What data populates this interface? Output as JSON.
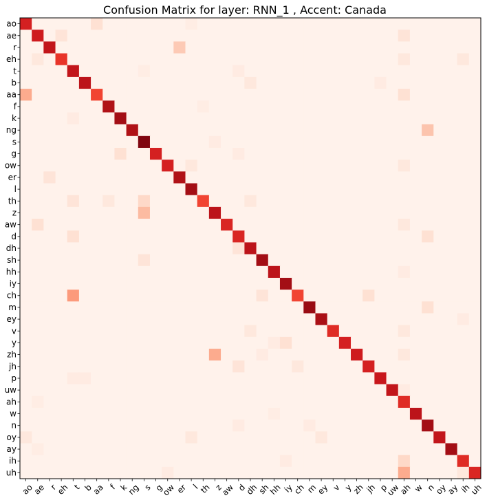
{
  "chart_data": {
    "type": "heatmap",
    "title": "Confusion Matrix for layer: RNN_1 , Accent: Canada",
    "xlabel": "",
    "ylabel": "",
    "colormap": "Reds",
    "vmin": 0,
    "vmax": 1,
    "labels": [
      "ao",
      "ae",
      "r",
      "eh",
      "t",
      "b",
      "aa",
      "f",
      "k",
      "ng",
      "s",
      "g",
      "ow",
      "er",
      "l",
      "th",
      "z",
      "aw",
      "d",
      "dh",
      "sh",
      "hh",
      "iy",
      "ch",
      "m",
      "ey",
      "v",
      "y",
      "zh",
      "jh",
      "p",
      "uw",
      "ah",
      "w",
      "n",
      "oy",
      "ay",
      "ih",
      "uh"
    ],
    "diagonal": [
      0.72,
      0.74,
      0.78,
      0.65,
      0.78,
      0.8,
      0.6,
      0.84,
      0.88,
      0.84,
      0.95,
      0.72,
      0.72,
      0.84,
      0.88,
      0.6,
      0.8,
      0.7,
      0.7,
      0.8,
      0.88,
      0.8,
      0.88,
      0.6,
      0.9,
      0.86,
      0.68,
      0.72,
      0.74,
      0.72,
      0.76,
      0.78,
      0.68,
      0.8,
      0.88,
      0.78,
      0.88,
      0.68,
      0.7
    ],
    "off_diagonal": [
      {
        "row": "ao",
        "col": "aa",
        "value": 0.12
      },
      {
        "row": "ao",
        "col": "l",
        "value": 0.05
      },
      {
        "row": "ae",
        "col": "eh",
        "value": 0.1
      },
      {
        "row": "ae",
        "col": "ah",
        "value": 0.1
      },
      {
        "row": "r",
        "col": "er",
        "value": 0.2
      },
      {
        "row": "eh",
        "col": "ae",
        "value": 0.08
      },
      {
        "row": "eh",
        "col": "ah",
        "value": 0.08
      },
      {
        "row": "eh",
        "col": "ih",
        "value": 0.08
      },
      {
        "row": "t",
        "col": "d",
        "value": 0.06
      },
      {
        "row": "t",
        "col": "s",
        "value": 0.05
      },
      {
        "row": "b",
        "col": "dh",
        "value": 0.08
      },
      {
        "row": "b",
        "col": "p",
        "value": 0.06
      },
      {
        "row": "aa",
        "col": "ao",
        "value": 0.3
      },
      {
        "row": "aa",
        "col": "ah",
        "value": 0.12
      },
      {
        "row": "f",
        "col": "th",
        "value": 0.05
      },
      {
        "row": "k",
        "col": "t",
        "value": 0.06
      },
      {
        "row": "ng",
        "col": "n",
        "value": 0.22
      },
      {
        "row": "s",
        "col": "z",
        "value": 0.06
      },
      {
        "row": "g",
        "col": "k",
        "value": 0.12
      },
      {
        "row": "g",
        "col": "d",
        "value": 0.06
      },
      {
        "row": "ow",
        "col": "l",
        "value": 0.08
      },
      {
        "row": "ow",
        "col": "ah",
        "value": 0.08
      },
      {
        "row": "er",
        "col": "r",
        "value": 0.1
      },
      {
        "row": "th",
        "col": "t",
        "value": 0.1
      },
      {
        "row": "th",
        "col": "f",
        "value": 0.08
      },
      {
        "row": "th",
        "col": "s",
        "value": 0.15
      },
      {
        "row": "th",
        "col": "dh",
        "value": 0.08
      },
      {
        "row": "z",
        "col": "s",
        "value": 0.25
      },
      {
        "row": "aw",
        "col": "ae",
        "value": 0.12
      },
      {
        "row": "aw",
        "col": "ah",
        "value": 0.08
      },
      {
        "row": "d",
        "col": "t",
        "value": 0.12
      },
      {
        "row": "d",
        "col": "n",
        "value": 0.12
      },
      {
        "row": "dh",
        "col": "d",
        "value": 0.1
      },
      {
        "row": "sh",
        "col": "s",
        "value": 0.1
      },
      {
        "row": "hh",
        "col": "ah",
        "value": 0.06
      },
      {
        "row": "ch",
        "col": "t",
        "value": 0.35
      },
      {
        "row": "ch",
        "col": "sh",
        "value": 0.1
      },
      {
        "row": "ch",
        "col": "jh",
        "value": 0.12
      },
      {
        "row": "m",
        "col": "n",
        "value": 0.12
      },
      {
        "row": "ey",
        "col": "ih",
        "value": 0.06
      },
      {
        "row": "v",
        "col": "dh",
        "value": 0.08
      },
      {
        "row": "v",
        "col": "ah",
        "value": 0.08
      },
      {
        "row": "y",
        "col": "iy",
        "value": 0.12
      },
      {
        "row": "y",
        "col": "hh",
        "value": 0.06
      },
      {
        "row": "zh",
        "col": "z",
        "value": 0.3
      },
      {
        "row": "zh",
        "col": "sh",
        "value": 0.06
      },
      {
        "row": "zh",
        "col": "ah",
        "value": 0.08
      },
      {
        "row": "jh",
        "col": "d",
        "value": 0.1
      },
      {
        "row": "jh",
        "col": "ch",
        "value": 0.08
      },
      {
        "row": "p",
        "col": "t",
        "value": 0.06
      },
      {
        "row": "p",
        "col": "b",
        "value": 0.06
      },
      {
        "row": "uw",
        "col": "ah",
        "value": 0.06
      },
      {
        "row": "ah",
        "col": "ae",
        "value": 0.05
      },
      {
        "row": "w",
        "col": "hh",
        "value": 0.05
      },
      {
        "row": "n",
        "col": "d",
        "value": 0.06
      },
      {
        "row": "n",
        "col": "m",
        "value": 0.06
      },
      {
        "row": "oy",
        "col": "ao",
        "value": 0.08
      },
      {
        "row": "oy",
        "col": "l",
        "value": 0.08
      },
      {
        "row": "oy",
        "col": "ey",
        "value": 0.08
      },
      {
        "row": "ay",
        "col": "ae",
        "value": 0.05
      },
      {
        "row": "ih",
        "col": "ah",
        "value": 0.15
      },
      {
        "row": "ih",
        "col": "iy",
        "value": 0.06
      },
      {
        "row": "uh",
        "col": "ah",
        "value": 0.3
      },
      {
        "row": "uh",
        "col": "ih",
        "value": 0.08
      },
      {
        "row": "uh",
        "col": "ow",
        "value": 0.06
      }
    ],
    "background_value": 0.02,
    "grid": false,
    "legend": "none"
  }
}
